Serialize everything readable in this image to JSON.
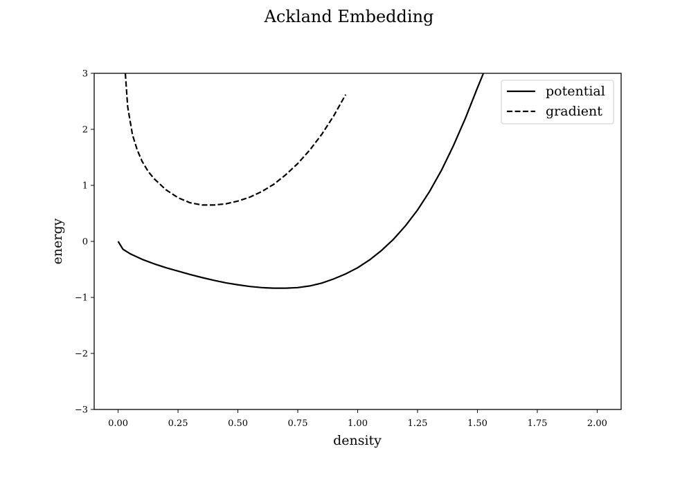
{
  "chart_data": {
    "type": "line",
    "title": "Ackland Embedding",
    "xlabel": "density",
    "ylabel": "energy",
    "xlim": [
      -0.1,
      2.1
    ],
    "ylim": [
      -3,
      3
    ],
    "x_ticks": [
      "0.00",
      "0.25",
      "0.50",
      "0.75",
      "1.00",
      "1.25",
      "1.50",
      "1.75",
      "2.00"
    ],
    "x_tick_values": [
      0.0,
      0.25,
      0.5,
      0.75,
      1.0,
      1.25,
      1.5,
      1.75,
      2.0
    ],
    "y_ticks": [
      "−3",
      "−2",
      "−1",
      "0",
      "1",
      "2",
      "3"
    ],
    "y_tick_values": [
      -3,
      -2,
      -1,
      0,
      1,
      2,
      3
    ],
    "grid": false,
    "legend_position": "top-right",
    "line_color": "#000000",
    "series": [
      {
        "name": "potential",
        "style": "solid",
        "x": [
          0.0,
          0.02,
          0.05,
          0.1,
          0.15,
          0.2,
          0.25,
          0.3,
          0.35,
          0.4,
          0.45,
          0.5,
          0.55,
          0.6,
          0.65,
          0.7,
          0.75,
          0.8,
          0.85,
          0.9,
          0.95,
          1.0,
          1.05,
          1.1,
          1.15,
          1.2,
          1.25,
          1.3,
          1.35,
          1.4,
          1.45,
          1.5,
          1.525
        ],
        "y": [
          0.0,
          -0.14,
          -0.22,
          -0.32,
          -0.4,
          -0.47,
          -0.53,
          -0.59,
          -0.645,
          -0.695,
          -0.74,
          -0.775,
          -0.805,
          -0.825,
          -0.835,
          -0.835,
          -0.825,
          -0.795,
          -0.745,
          -0.67,
          -0.58,
          -0.47,
          -0.33,
          -0.16,
          0.04,
          0.28,
          0.56,
          0.89,
          1.27,
          1.71,
          2.2,
          2.74,
          3.0
        ]
      },
      {
        "name": "gradient",
        "style": "dashed",
        "x": [
          0.03,
          0.04,
          0.06,
          0.08,
          0.1,
          0.125,
          0.15,
          0.2,
          0.25,
          0.3,
          0.35,
          0.4,
          0.45,
          0.5,
          0.55,
          0.6,
          0.65,
          0.7,
          0.75,
          0.8,
          0.85,
          0.9,
          0.95
        ],
        "y": [
          3.0,
          2.4,
          1.9,
          1.63,
          1.43,
          1.25,
          1.12,
          0.92,
          0.78,
          0.69,
          0.65,
          0.65,
          0.67,
          0.72,
          0.79,
          0.89,
          1.02,
          1.19,
          1.39,
          1.63,
          1.91,
          2.24,
          2.62
        ]
      }
    ]
  }
}
